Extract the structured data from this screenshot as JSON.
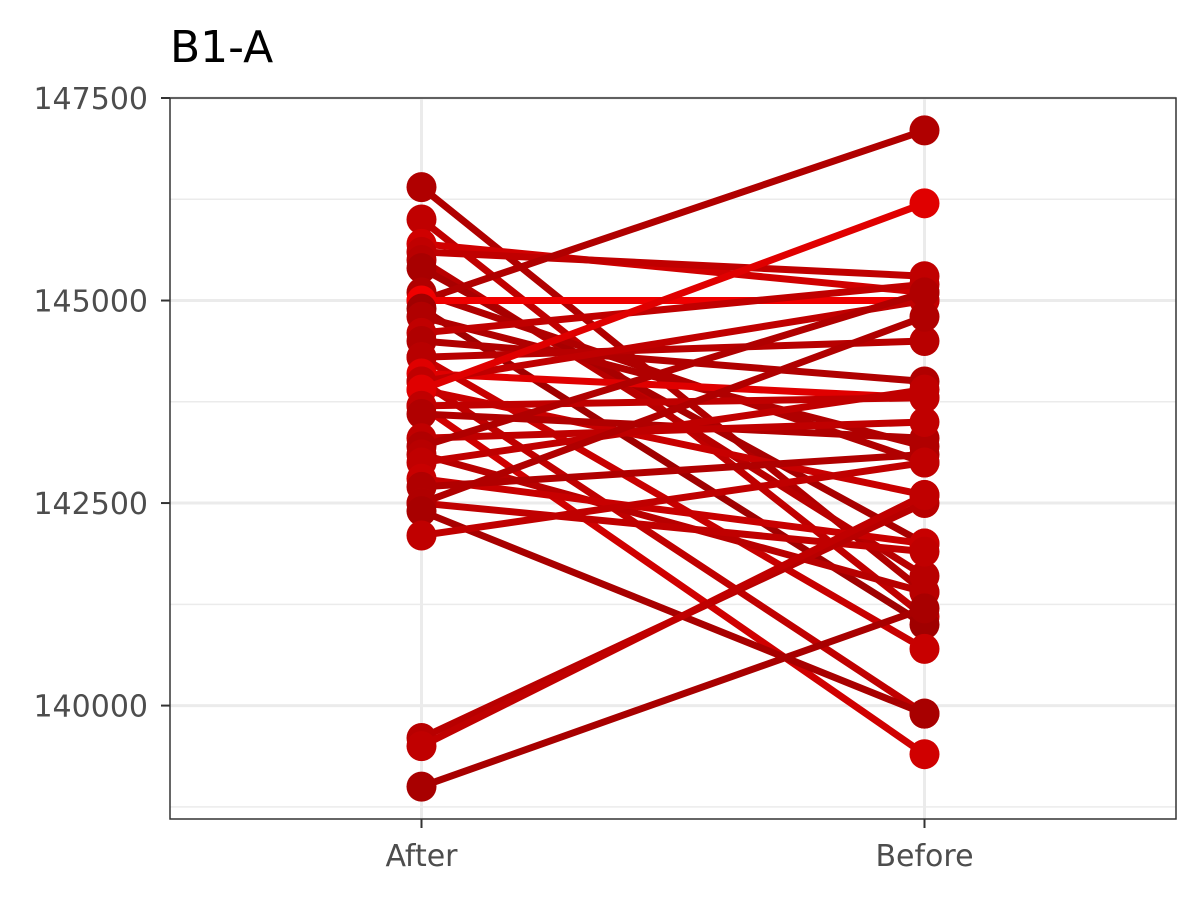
{
  "chart_data": {
    "type": "line",
    "title": "B1-A",
    "xlabel": "",
    "ylabel": "",
    "categories": [
      "After",
      "Before"
    ],
    "ylim": [
      138600,
      147500
    ],
    "y_ticks": [
      "140000",
      "142500",
      "145000",
      "147500"
    ],
    "grid": true,
    "legend": "none",
    "series": [
      {
        "values": [
          146400,
          141400
        ],
        "color": "#b00000"
      },
      {
        "values": [
          146000,
          141100
        ],
        "color": "#c00000"
      },
      {
        "values": [
          145700,
          145100
        ],
        "color": "#d00000"
      },
      {
        "values": [
          145600,
          145300
        ],
        "color": "#c00000"
      },
      {
        "values": [
          145500,
          141600
        ],
        "color": "#b80000"
      },
      {
        "values": [
          145400,
          142000
        ],
        "color": "#a80000"
      },
      {
        "values": [
          145100,
          143000
        ],
        "color": "#b00000"
      },
      {
        "values": [
          145000,
          147100
        ],
        "color": "#b00000"
      },
      {
        "values": [
          145000,
          145000
        ],
        "color": "#f00000"
      },
      {
        "values": [
          144900,
          141000
        ],
        "color": "#a00000"
      },
      {
        "values": [
          144800,
          143200
        ],
        "color": "#b00000"
      },
      {
        "values": [
          144600,
          145200
        ],
        "color": "#c00000"
      },
      {
        "values": [
          144500,
          144000
        ],
        "color": "#b00000"
      },
      {
        "values": [
          144300,
          140700
        ],
        "color": "#c80000"
      },
      {
        "values": [
          144300,
          144500
        ],
        "color": "#b80000"
      },
      {
        "values": [
          144100,
          143800
        ],
        "color": "#e00000"
      },
      {
        "values": [
          144000,
          139900
        ],
        "color": "#c00000"
      },
      {
        "values": [
          144000,
          145000
        ],
        "color": "#c00000"
      },
      {
        "values": [
          143900,
          142600
        ],
        "color": "#c80000"
      },
      {
        "values": [
          143900,
          146200
        ],
        "color": "#e00000"
      },
      {
        "values": [
          143700,
          139400
        ],
        "color": "#d00000"
      },
      {
        "values": [
          143700,
          143800
        ],
        "color": "#c00000"
      },
      {
        "values": [
          143600,
          143300
        ],
        "color": "#b00000"
      },
      {
        "values": [
          143300,
          143500
        ],
        "color": "#c00000"
      },
      {
        "values": [
          143200,
          145100
        ],
        "color": "#b00000"
      },
      {
        "values": [
          143100,
          141400
        ],
        "color": "#b80000"
      },
      {
        "values": [
          143000,
          143900
        ],
        "color": "#c00000"
      },
      {
        "values": [
          142800,
          142000
        ],
        "color": "#c80000"
      },
      {
        "values": [
          142700,
          143100
        ],
        "color": "#b00000"
      },
      {
        "values": [
          142500,
          141900
        ],
        "color": "#c00000"
      },
      {
        "values": [
          142500,
          144800
        ],
        "color": "#b00000"
      },
      {
        "values": [
          142400,
          139900
        ],
        "color": "#a80000"
      },
      {
        "values": [
          142100,
          143000
        ],
        "color": "#c00000"
      },
      {
        "values": [
          139600,
          142500
        ],
        "color": "#b80000"
      },
      {
        "values": [
          139500,
          142600
        ],
        "color": "#c00000"
      },
      {
        "values": [
          139000,
          141200
        ],
        "color": "#a80000"
      }
    ]
  }
}
